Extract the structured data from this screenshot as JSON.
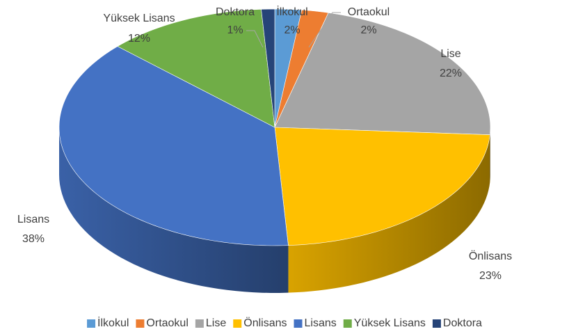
{
  "chart_data": {
    "type": "pie",
    "three_d": true,
    "categories": [
      "İlkokul",
      "Ortaokul",
      "Lise",
      "Önlisans",
      "Lisans",
      "Yüksek Lisans",
      "Doktora"
    ],
    "values": [
      2,
      2,
      22,
      23,
      38,
      12,
      1
    ],
    "value_labels": [
      "2%",
      "2%",
      "22%",
      "23%",
      "38%",
      "12%",
      "1%"
    ],
    "colors": [
      "#5b9bd5",
      "#ed7d31",
      "#a5a5a5",
      "#ffc000",
      "#4472c4",
      "#70ad47",
      "#264478"
    ],
    "legend": "bottom"
  }
}
